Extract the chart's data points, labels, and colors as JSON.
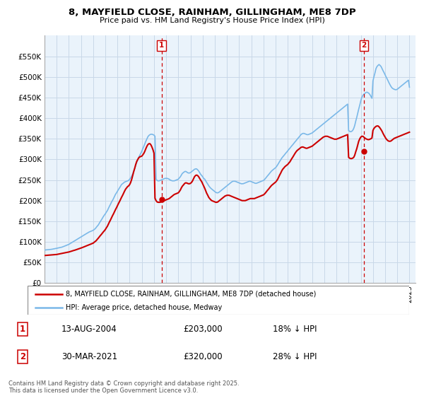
{
  "title": "8, MAYFIELD CLOSE, RAINHAM, GILLINGHAM, ME8 7DP",
  "subtitle": "Price paid vs. HM Land Registry's House Price Index (HPI)",
  "legend_line1": "8, MAYFIELD CLOSE, RAINHAM, GILLINGHAM, ME8 7DP (detached house)",
  "legend_line2": "HPI: Average price, detached house, Medway",
  "annotation1_label": "1",
  "annotation1_date": "13-AUG-2004",
  "annotation1_price": "£203,000",
  "annotation1_note": "18% ↓ HPI",
  "annotation2_label": "2",
  "annotation2_date": "30-MAR-2021",
  "annotation2_price": "£320,000",
  "annotation2_note": "28% ↓ HPI",
  "footer": "Contains HM Land Registry data © Crown copyright and database right 2025.\nThis data is licensed under the Open Government Licence v3.0.",
  "hpi_color": "#7ab8e8",
  "price_color": "#cc0000",
  "annotation_color": "#cc0000",
  "bg_color": "#eaf3fb",
  "grid_color": "#c8d8e8",
  "ylim": [
    0,
    600000
  ],
  "ytick_values": [
    0,
    50000,
    100000,
    150000,
    200000,
    250000,
    300000,
    350000,
    400000,
    450000,
    500000,
    550000
  ],
  "transaction1_year": 2004.617,
  "transaction1_value": 203000,
  "transaction2_year": 2021.247,
  "transaction2_value": 320000,
  "hpi_x": [
    1995.0,
    1995.08,
    1995.17,
    1995.25,
    1995.33,
    1995.42,
    1995.5,
    1995.58,
    1995.67,
    1995.75,
    1995.83,
    1995.92,
    1996.0,
    1996.08,
    1996.17,
    1996.25,
    1996.33,
    1996.42,
    1996.5,
    1996.58,
    1996.67,
    1996.75,
    1996.83,
    1996.92,
    1997.0,
    1997.08,
    1997.17,
    1997.25,
    1997.33,
    1997.42,
    1997.5,
    1997.58,
    1997.67,
    1997.75,
    1997.83,
    1997.92,
    1998.0,
    1998.08,
    1998.17,
    1998.25,
    1998.33,
    1998.42,
    1998.5,
    1998.58,
    1998.67,
    1998.75,
    1998.83,
    1998.92,
    1999.0,
    1999.08,
    1999.17,
    1999.25,
    1999.33,
    1999.42,
    1999.5,
    1999.58,
    1999.67,
    1999.75,
    1999.83,
    1999.92,
    2000.0,
    2000.08,
    2000.17,
    2000.25,
    2000.33,
    2000.42,
    2000.5,
    2000.58,
    2000.67,
    2000.75,
    2000.83,
    2000.92,
    2001.0,
    2001.08,
    2001.17,
    2001.25,
    2001.33,
    2001.42,
    2001.5,
    2001.58,
    2001.67,
    2001.75,
    2001.83,
    2001.92,
    2002.0,
    2002.08,
    2002.17,
    2002.25,
    2002.33,
    2002.42,
    2002.5,
    2002.58,
    2002.67,
    2002.75,
    2002.83,
    2002.92,
    2003.0,
    2003.08,
    2003.17,
    2003.25,
    2003.33,
    2003.42,
    2003.5,
    2003.58,
    2003.67,
    2003.75,
    2003.83,
    2003.92,
    2004.0,
    2004.08,
    2004.17,
    2004.25,
    2004.33,
    2004.42,
    2004.5,
    2004.58,
    2004.67,
    2004.75,
    2004.83,
    2004.92,
    2005.0,
    2005.08,
    2005.17,
    2005.25,
    2005.33,
    2005.42,
    2005.5,
    2005.58,
    2005.67,
    2005.75,
    2005.83,
    2005.92,
    2006.0,
    2006.08,
    2006.17,
    2006.25,
    2006.33,
    2006.42,
    2006.5,
    2006.58,
    2006.67,
    2006.75,
    2006.83,
    2006.92,
    2007.0,
    2007.08,
    2007.17,
    2007.25,
    2007.33,
    2007.42,
    2007.5,
    2007.58,
    2007.67,
    2007.75,
    2007.83,
    2007.92,
    2008.0,
    2008.08,
    2008.17,
    2008.25,
    2008.33,
    2008.42,
    2008.5,
    2008.58,
    2008.67,
    2008.75,
    2008.83,
    2008.92,
    2009.0,
    2009.08,
    2009.17,
    2009.25,
    2009.33,
    2009.42,
    2009.5,
    2009.58,
    2009.67,
    2009.75,
    2009.83,
    2009.92,
    2010.0,
    2010.08,
    2010.17,
    2010.25,
    2010.33,
    2010.42,
    2010.5,
    2010.58,
    2010.67,
    2010.75,
    2010.83,
    2010.92,
    2011.0,
    2011.08,
    2011.17,
    2011.25,
    2011.33,
    2011.42,
    2011.5,
    2011.58,
    2011.67,
    2011.75,
    2011.83,
    2011.92,
    2012.0,
    2012.08,
    2012.17,
    2012.25,
    2012.33,
    2012.42,
    2012.5,
    2012.58,
    2012.67,
    2012.75,
    2012.83,
    2012.92,
    2013.0,
    2013.08,
    2013.17,
    2013.25,
    2013.33,
    2013.42,
    2013.5,
    2013.58,
    2013.67,
    2013.75,
    2013.83,
    2013.92,
    2014.0,
    2014.08,
    2014.17,
    2014.25,
    2014.33,
    2014.42,
    2014.5,
    2014.58,
    2014.67,
    2014.75,
    2014.83,
    2014.92,
    2015.0,
    2015.08,
    2015.17,
    2015.25,
    2015.33,
    2015.42,
    2015.5,
    2015.58,
    2015.67,
    2015.75,
    2015.83,
    2015.92,
    2016.0,
    2016.08,
    2016.17,
    2016.25,
    2016.33,
    2016.42,
    2016.5,
    2016.58,
    2016.67,
    2016.75,
    2016.83,
    2016.92,
    2017.0,
    2017.08,
    2017.17,
    2017.25,
    2017.33,
    2017.42,
    2017.5,
    2017.58,
    2017.67,
    2017.75,
    2017.83,
    2017.92,
    2018.0,
    2018.08,
    2018.17,
    2018.25,
    2018.33,
    2018.42,
    2018.5,
    2018.58,
    2018.67,
    2018.75,
    2018.83,
    2018.92,
    2019.0,
    2019.08,
    2019.17,
    2019.25,
    2019.33,
    2019.42,
    2019.5,
    2019.58,
    2019.67,
    2019.75,
    2019.83,
    2019.92,
    2020.0,
    2020.08,
    2020.17,
    2020.25,
    2020.33,
    2020.42,
    2020.5,
    2020.58,
    2020.67,
    2020.75,
    2020.83,
    2020.92,
    2021.0,
    2021.08,
    2021.17,
    2021.25,
    2021.33,
    2021.42,
    2021.5,
    2021.58,
    2021.67,
    2021.75,
    2021.83,
    2021.92,
    2022.0,
    2022.08,
    2022.17,
    2022.25,
    2022.33,
    2022.42,
    2022.5,
    2022.58,
    2022.67,
    2022.75,
    2022.83,
    2022.92,
    2023.0,
    2023.08,
    2023.17,
    2023.25,
    2023.33,
    2023.42,
    2023.5,
    2023.58,
    2023.67,
    2023.75,
    2023.83,
    2023.92,
    2024.0,
    2024.08,
    2024.17,
    2024.25,
    2024.33,
    2024.42,
    2024.5,
    2024.58,
    2024.67,
    2024.75,
    2024.83,
    2024.92,
    2025.0
  ],
  "hpi_y": [
    80000,
    80500,
    80800,
    81000,
    81200,
    81500,
    81700,
    82000,
    82500,
    83000,
    83500,
    84000,
    84500,
    85000,
    85500,
    86000,
    86500,
    87200,
    88000,
    89000,
    90000,
    91000,
    92000,
    93000,
    94000,
    95500,
    97000,
    98500,
    100000,
    101500,
    103000,
    104500,
    106000,
    107500,
    109000,
    110500,
    112000,
    113500,
    115000,
    116500,
    118000,
    119500,
    121000,
    122500,
    124000,
    125000,
    126000,
    127000,
    128000,
    130000,
    132000,
    135000,
    138000,
    141000,
    145000,
    149000,
    153000,
    157000,
    161000,
    165000,
    168000,
    172000,
    176000,
    181000,
    186000,
    191000,
    196000,
    200000,
    205000,
    210000,
    215000,
    219000,
    223000,
    227000,
    231000,
    235000,
    239000,
    241000,
    243000,
    245000,
    246000,
    247000,
    248000,
    249000,
    252000,
    255000,
    260000,
    265000,
    272000,
    279000,
    286000,
    293000,
    300000,
    305000,
    310000,
    315000,
    320000,
    326000,
    332000,
    338000,
    344000,
    350000,
    355000,
    358000,
    360000,
    361000,
    361000,
    360000,
    359000,
    356000,
    252000,
    249000,
    248000,
    248000,
    249000,
    250000,
    251000,
    252000,
    253000,
    254000,
    254000,
    254000,
    253000,
    252000,
    250000,
    249000,
    248000,
    248000,
    248000,
    249000,
    250000,
    251000,
    252000,
    255000,
    258000,
    262000,
    266000,
    268000,
    270000,
    271000,
    270000,
    268000,
    267000,
    267000,
    268000,
    270000,
    272000,
    274000,
    276000,
    277000,
    277000,
    275000,
    272000,
    268000,
    264000,
    261000,
    258000,
    254000,
    252000,
    248000,
    244000,
    240000,
    236000,
    233000,
    230000,
    228000,
    226000,
    224000,
    222000,
    220000,
    219000,
    219000,
    220000,
    222000,
    224000,
    226000,
    228000,
    230000,
    232000,
    234000,
    236000,
    238000,
    240000,
    242000,
    244000,
    246000,
    247000,
    247000,
    247000,
    246000,
    245000,
    244000,
    243000,
    242000,
    241000,
    241000,
    241000,
    242000,
    243000,
    244000,
    245000,
    246000,
    247000,
    247000,
    246000,
    245000,
    244000,
    243000,
    242000,
    242000,
    243000,
    244000,
    245000,
    246000,
    247000,
    248000,
    249000,
    251000,
    254000,
    257000,
    260000,
    263000,
    266000,
    269000,
    272000,
    274000,
    276000,
    278000,
    280000,
    283000,
    287000,
    291000,
    295000,
    299000,
    303000,
    306000,
    309000,
    312000,
    315000,
    318000,
    321000,
    324000,
    327000,
    330000,
    333000,
    336000,
    339000,
    342000,
    345000,
    348000,
    351000,
    354000,
    357000,
    360000,
    362000,
    363000,
    363000,
    362000,
    361000,
    360000,
    360000,
    361000,
    362000,
    363000,
    364000,
    366000,
    368000,
    370000,
    372000,
    374000,
    376000,
    378000,
    380000,
    382000,
    384000,
    386000,
    388000,
    390000,
    392000,
    394000,
    396000,
    398000,
    400000,
    402000,
    404000,
    406000,
    408000,
    410000,
    412000,
    414000,
    416000,
    418000,
    420000,
    422000,
    424000,
    426000,
    428000,
    430000,
    432000,
    434000,
    370000,
    368000,
    367000,
    368000,
    370000,
    375000,
    382000,
    392000,
    402000,
    412000,
    422000,
    432000,
    442000,
    450000,
    455000,
    458000,
    460000,
    462000,
    463000,
    462000,
    460000,
    457000,
    453000,
    448000,
    490000,
    500000,
    510000,
    520000,
    525000,
    528000,
    530000,
    528000,
    525000,
    520000,
    515000,
    510000,
    505000,
    500000,
    495000,
    490000,
    485000,
    480000,
    476000,
    473000,
    471000,
    470000,
    469000,
    469000,
    470000,
    472000,
    474000,
    476000,
    478000,
    480000,
    482000,
    484000,
    486000,
    488000,
    490000,
    492000,
    475000
  ],
  "price_x": [
    1995.0,
    1995.08,
    1995.17,
    1995.25,
    1995.33,
    1995.42,
    1995.5,
    1995.58,
    1995.67,
    1995.75,
    1995.83,
    1995.92,
    1996.0,
    1996.08,
    1996.17,
    1996.25,
    1996.33,
    1996.42,
    1996.5,
    1996.58,
    1996.67,
    1996.75,
    1996.83,
    1996.92,
    1997.0,
    1997.08,
    1997.17,
    1997.25,
    1997.33,
    1997.42,
    1997.5,
    1997.58,
    1997.67,
    1997.75,
    1997.83,
    1997.92,
    1998.0,
    1998.08,
    1998.17,
    1998.25,
    1998.33,
    1998.42,
    1998.5,
    1998.58,
    1998.67,
    1998.75,
    1998.83,
    1998.92,
    1999.0,
    1999.08,
    1999.17,
    1999.25,
    1999.33,
    1999.42,
    1999.5,
    1999.58,
    1999.67,
    1999.75,
    1999.83,
    1999.92,
    2000.0,
    2000.08,
    2000.17,
    2000.25,
    2000.33,
    2000.42,
    2000.5,
    2000.58,
    2000.67,
    2000.75,
    2000.83,
    2000.92,
    2001.0,
    2001.08,
    2001.17,
    2001.25,
    2001.33,
    2001.42,
    2001.5,
    2001.58,
    2001.67,
    2001.75,
    2001.83,
    2001.92,
    2002.0,
    2002.08,
    2002.17,
    2002.25,
    2002.33,
    2002.42,
    2002.5,
    2002.58,
    2002.67,
    2002.75,
    2002.83,
    2002.92,
    2003.0,
    2003.08,
    2003.17,
    2003.25,
    2003.33,
    2003.42,
    2003.5,
    2003.58,
    2003.67,
    2003.75,
    2003.83,
    2003.92,
    2004.0,
    2004.08,
    2004.17,
    2004.25,
    2004.33,
    2004.42,
    2004.5,
    2004.58,
    2004.67,
    2004.75,
    2004.83,
    2004.92,
    2005.0,
    2005.08,
    2005.17,
    2005.25,
    2005.33,
    2005.42,
    2005.5,
    2005.58,
    2005.67,
    2005.75,
    2005.83,
    2005.92,
    2006.0,
    2006.08,
    2006.17,
    2006.25,
    2006.33,
    2006.42,
    2006.5,
    2006.58,
    2006.67,
    2006.75,
    2006.83,
    2006.92,
    2007.0,
    2007.08,
    2007.17,
    2007.25,
    2007.33,
    2007.42,
    2007.5,
    2007.58,
    2007.67,
    2007.75,
    2007.83,
    2007.92,
    2008.0,
    2008.08,
    2008.17,
    2008.25,
    2008.33,
    2008.42,
    2008.5,
    2008.58,
    2008.67,
    2008.75,
    2008.83,
    2008.92,
    2009.0,
    2009.08,
    2009.17,
    2009.25,
    2009.33,
    2009.42,
    2009.5,
    2009.58,
    2009.67,
    2009.75,
    2009.83,
    2009.92,
    2010.0,
    2010.08,
    2010.17,
    2010.25,
    2010.33,
    2010.42,
    2010.5,
    2010.58,
    2010.67,
    2010.75,
    2010.83,
    2010.92,
    2011.0,
    2011.08,
    2011.17,
    2011.25,
    2011.33,
    2011.42,
    2011.5,
    2011.58,
    2011.67,
    2011.75,
    2011.83,
    2011.92,
    2012.0,
    2012.08,
    2012.17,
    2012.25,
    2012.33,
    2012.42,
    2012.5,
    2012.58,
    2012.67,
    2012.75,
    2012.83,
    2012.92,
    2013.0,
    2013.08,
    2013.17,
    2013.25,
    2013.33,
    2013.42,
    2013.5,
    2013.58,
    2013.67,
    2013.75,
    2013.83,
    2013.92,
    2014.0,
    2014.08,
    2014.17,
    2014.25,
    2014.33,
    2014.42,
    2014.5,
    2014.58,
    2014.67,
    2014.75,
    2014.83,
    2014.92,
    2015.0,
    2015.08,
    2015.17,
    2015.25,
    2015.33,
    2015.42,
    2015.5,
    2015.58,
    2015.67,
    2015.75,
    2015.83,
    2015.92,
    2016.0,
    2016.08,
    2016.17,
    2016.25,
    2016.33,
    2016.42,
    2016.5,
    2016.58,
    2016.67,
    2016.75,
    2016.83,
    2016.92,
    2017.0,
    2017.08,
    2017.17,
    2017.25,
    2017.33,
    2017.42,
    2017.5,
    2017.58,
    2017.67,
    2017.75,
    2017.83,
    2017.92,
    2018.0,
    2018.08,
    2018.17,
    2018.25,
    2018.33,
    2018.42,
    2018.5,
    2018.58,
    2018.67,
    2018.75,
    2018.83,
    2018.92,
    2019.0,
    2019.08,
    2019.17,
    2019.25,
    2019.33,
    2019.42,
    2019.5,
    2019.58,
    2019.67,
    2019.75,
    2019.83,
    2019.92,
    2020.0,
    2020.08,
    2020.17,
    2020.25,
    2020.33,
    2020.42,
    2020.5,
    2020.58,
    2020.67,
    2020.75,
    2020.83,
    2020.92,
    2021.0,
    2021.08,
    2021.17,
    2021.25,
    2021.33,
    2021.42,
    2021.5,
    2021.58,
    2021.67,
    2021.75,
    2021.83,
    2021.92,
    2022.0,
    2022.08,
    2022.17,
    2022.25,
    2022.33,
    2022.42,
    2022.5,
    2022.58,
    2022.67,
    2022.75,
    2022.83,
    2022.92,
    2023.0,
    2023.08,
    2023.17,
    2023.25,
    2023.33,
    2023.42,
    2023.5,
    2023.58,
    2023.67,
    2023.75,
    2023.83,
    2023.92,
    2024.0,
    2024.08,
    2024.17,
    2024.25,
    2024.33,
    2024.42,
    2024.5,
    2024.58,
    2024.67,
    2024.75,
    2024.83,
    2024.92,
    2025.0
  ],
  "price_y": [
    67000,
    67200,
    67400,
    67600,
    67800,
    68000,
    68200,
    68400,
    68600,
    68800,
    69000,
    69200,
    69500,
    70000,
    70500,
    71000,
    71500,
    72000,
    72500,
    73000,
    73500,
    74000,
    74500,
    75000,
    75500,
    76200,
    77000,
    77800,
    78600,
    79400,
    80000,
    80800,
    81600,
    82400,
    83200,
    84000,
    85000,
    86000,
    87000,
    88000,
    89000,
    90000,
    91000,
    92000,
    93000,
    94000,
    95000,
    96000,
    97000,
    99000,
    101000,
    103000,
    106000,
    109000,
    112000,
    115000,
    118000,
    121000,
    124000,
    127000,
    130000,
    134000,
    138000,
    143000,
    148000,
    153000,
    158000,
    163000,
    168000,
    173000,
    178000,
    183000,
    188000,
    193000,
    198000,
    203000,
    208000,
    213000,
    218000,
    223000,
    228000,
    231000,
    234000,
    236000,
    239000,
    244000,
    252000,
    261000,
    270000,
    279000,
    288000,
    295000,
    300000,
    304000,
    306000,
    307000,
    308000,
    311000,
    315000,
    320000,
    326000,
    332000,
    336000,
    338000,
    338000,
    335000,
    330000,
    323000,
    315000,
    206000,
    200000,
    197000,
    196000,
    196000,
    196000,
    197000,
    198000,
    199000,
    200000,
    201000,
    202000,
    203000,
    204000,
    205000,
    207000,
    209000,
    211000,
    213000,
    215000,
    216000,
    217000,
    218000,
    219000,
    222000,
    226000,
    231000,
    235000,
    238000,
    241000,
    243000,
    243000,
    242000,
    241000,
    241000,
    242000,
    244000,
    248000,
    253000,
    258000,
    261000,
    262000,
    261000,
    258000,
    254000,
    250000,
    246000,
    241000,
    236000,
    230000,
    224000,
    218000,
    213000,
    208000,
    205000,
    202000,
    200000,
    199000,
    198000,
    197000,
    196000,
    196000,
    197000,
    199000,
    201000,
    203000,
    205000,
    207000,
    209000,
    211000,
    212000,
    213000,
    213000,
    213000,
    212000,
    211000,
    210000,
    209000,
    208000,
    207000,
    206000,
    205000,
    204000,
    203000,
    202000,
    201000,
    200000,
    200000,
    200000,
    200000,
    201000,
    202000,
    203000,
    204000,
    205000,
    205000,
    205000,
    205000,
    205000,
    206000,
    207000,
    208000,
    209000,
    210000,
    211000,
    212000,
    213000,
    214000,
    216000,
    219000,
    222000,
    225000,
    228000,
    231000,
    234000,
    237000,
    239000,
    241000,
    243000,
    245000,
    248000,
    252000,
    257000,
    262000,
    267000,
    272000,
    276000,
    279000,
    282000,
    284000,
    286000,
    288000,
    291000,
    294000,
    298000,
    302000,
    306000,
    310000,
    314000,
    318000,
    321000,
    323000,
    325000,
    327000,
    329000,
    330000,
    330000,
    329000,
    328000,
    327000,
    327000,
    328000,
    329000,
    330000,
    331000,
    332000,
    334000,
    336000,
    338000,
    340000,
    342000,
    344000,
    346000,
    348000,
    350000,
    352000,
    354000,
    355000,
    356000,
    356000,
    356000,
    355000,
    354000,
    353000,
    352000,
    351000,
    350000,
    349000,
    349000,
    349000,
    350000,
    351000,
    352000,
    353000,
    354000,
    355000,
    356000,
    357000,
    358000,
    359000,
    360000,
    305000,
    303000,
    302000,
    302000,
    303000,
    305000,
    310000,
    318000,
    326000,
    335000,
    344000,
    350000,
    354000,
    356000,
    356000,
    354000,
    352000,
    350000,
    349000,
    348000,
    348000,
    349000,
    350000,
    352000,
    370000,
    375000,
    378000,
    380000,
    381000,
    381000,
    379000,
    376000,
    372000,
    368000,
    363000,
    358000,
    354000,
    350000,
    347000,
    345000,
    344000,
    344000,
    345000,
    347000,
    349000,
    351000,
    352000,
    353000,
    354000,
    355000,
    356000,
    357000,
    358000,
    359000,
    360000,
    361000,
    362000,
    363000,
    364000,
    365000,
    366000
  ]
}
